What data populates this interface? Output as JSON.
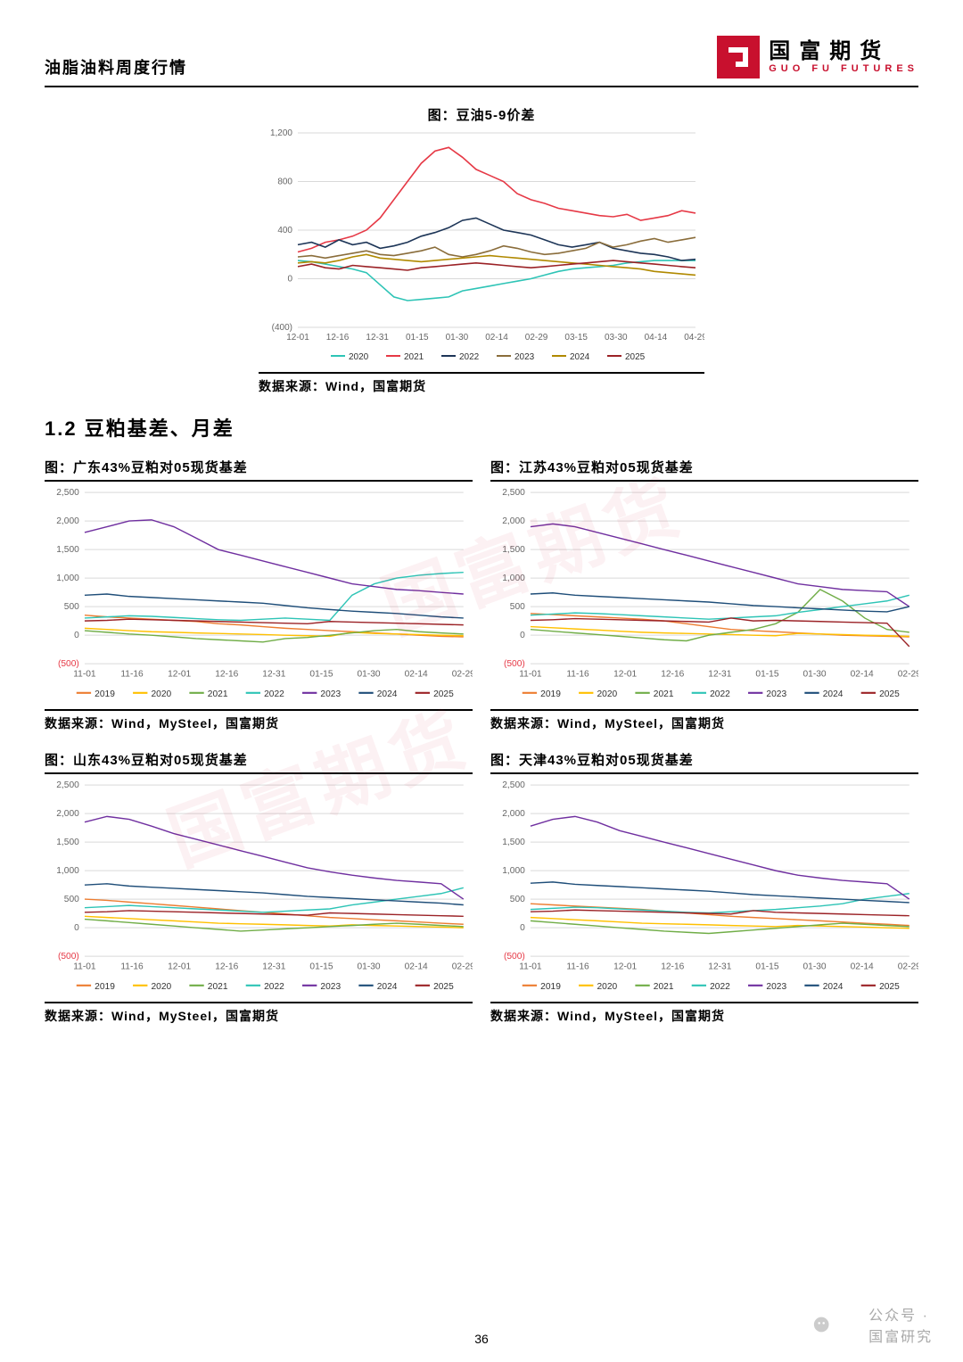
{
  "header": {
    "doc_title": "油脂油料周度行情",
    "logo_cn": "国富期货",
    "logo_en": "GUO FU FUTURES"
  },
  "section_heading": "1.2 豆粕基差、月差",
  "page_number": "36",
  "footer_mark": "公众号 · 国富研究",
  "watermark": "国富期货",
  "top_chart": {
    "type": "line",
    "title": "图：豆油5-9价差",
    "source": "数据来源：Wind，国富期货",
    "ylim": [
      -400,
      1200
    ],
    "ytick_step": 400,
    "x_labels": [
      "12-01",
      "12-16",
      "12-31",
      "01-15",
      "01-30",
      "02-14",
      "02-29",
      "03-15",
      "03-30",
      "04-14",
      "04-29"
    ],
    "background_color": "#ffffff",
    "grid_color": "#d9d9d9",
    "axis_fontsize": 10,
    "title_fontsize": 15,
    "line_width": 1.6,
    "legend": [
      {
        "label": "2020",
        "color": "#2ec4b6"
      },
      {
        "label": "2021",
        "color": "#e63946"
      },
      {
        "label": "2022",
        "color": "#1d3557"
      },
      {
        "label": "2023",
        "color": "#8a6d3b"
      },
      {
        "label": "2024",
        "color": "#b08900"
      },
      {
        "label": "2025",
        "color": "#9b2226"
      }
    ],
    "series": {
      "2020": [
        150,
        140,
        120,
        100,
        80,
        50,
        -50,
        -150,
        -180,
        -170,
        -160,
        -150,
        -100,
        -80,
        -60,
        -40,
        -20,
        0,
        30,
        60,
        80,
        90,
        100,
        110,
        130,
        140,
        150,
        150,
        150,
        150
      ],
      "2021": [
        220,
        250,
        300,
        320,
        350,
        400,
        500,
        650,
        800,
        950,
        1050,
        1080,
        1000,
        900,
        850,
        800,
        700,
        650,
        620,
        580,
        560,
        540,
        520,
        510,
        530,
        480,
        500,
        520,
        560,
        540
      ],
      "2022": [
        280,
        300,
        260,
        320,
        280,
        300,
        250,
        270,
        300,
        350,
        380,
        420,
        480,
        500,
        450,
        400,
        380,
        360,
        320,
        280,
        260,
        280,
        300,
        250,
        230,
        210,
        200,
        180,
        150,
        160
      ],
      "2023": [
        180,
        190,
        170,
        190,
        210,
        230,
        200,
        190,
        210,
        230,
        260,
        200,
        180,
        200,
        230,
        270,
        250,
        220,
        200,
        210,
        230,
        250,
        300,
        260,
        280,
        310,
        330,
        300,
        320,
        340
      ],
      "2024": [
        130,
        140,
        130,
        150,
        180,
        200,
        170,
        160,
        150,
        140,
        150,
        160,
        170,
        180,
        190,
        180,
        170,
        160,
        150,
        140,
        130,
        120,
        110,
        100,
        90,
        80,
        60,
        50,
        40,
        30
      ],
      "2025": [
        100,
        120,
        90,
        80,
        110,
        100,
        90,
        80,
        70,
        90,
        100,
        110,
        120,
        130,
        120,
        110,
        100,
        90,
        100,
        110,
        120,
        130,
        140,
        150,
        140,
        130,
        120,
        110,
        100,
        90
      ]
    }
  },
  "small_charts": {
    "common": {
      "type": "line",
      "ylim": [
        -500,
        2500
      ],
      "ytick_step": 500,
      "x_labels": [
        "11-01",
        "11-16",
        "12-01",
        "12-16",
        "12-31",
        "01-15",
        "01-30",
        "02-14",
        "02-29"
      ],
      "background_color": "#ffffff",
      "grid_color": "#d9d9d9",
      "axis_fontsize": 10,
      "title_fontsize": 14,
      "line_width": 1.4,
      "source": "数据来源：Wind，MySteel，国富期货",
      "neg_label_color": "#e63946",
      "legend": [
        {
          "label": "2019",
          "color": "#ed7d31"
        },
        {
          "label": "2020",
          "color": "#ffc000"
        },
        {
          "label": "2021",
          "color": "#70ad47"
        },
        {
          "label": "2022",
          "color": "#2ec4b6"
        },
        {
          "label": "2023",
          "color": "#7030a0"
        },
        {
          "label": "2024",
          "color": "#1f4e79"
        },
        {
          "label": "2025",
          "color": "#9b2226"
        }
      ]
    },
    "charts": [
      {
        "title": "图：广东43%豆粕对05现货基差",
        "series": {
          "2019": [
            350,
            320,
            300,
            280,
            260,
            240,
            200,
            180,
            150,
            120,
            100,
            80,
            60,
            40,
            20,
            0,
            -20,
            -30
          ],
          "2020": [
            120,
            100,
            80,
            60,
            50,
            40,
            30,
            20,
            10,
            0,
            -10,
            -20,
            50,
            30,
            20,
            10,
            0,
            -10
          ],
          "2021": [
            80,
            50,
            20,
            0,
            -30,
            -60,
            -80,
            -100,
            -120,
            -60,
            -40,
            0,
            40,
            80,
            100,
            60,
            40,
            20
          ],
          "2022": [
            300,
            320,
            340,
            330,
            310,
            290,
            270,
            260,
            280,
            300,
            280,
            260,
            700,
            900,
            1000,
            1050,
            1080,
            1100
          ],
          "2023": [
            1800,
            1900,
            2000,
            2020,
            1900,
            1700,
            1500,
            1400,
            1300,
            1200,
            1100,
            1000,
            900,
            850,
            800,
            780,
            750,
            720
          ],
          "2024": [
            700,
            720,
            680,
            660,
            640,
            620,
            600,
            580,
            560,
            520,
            480,
            450,
            420,
            400,
            380,
            350,
            320,
            300
          ],
          "2025": [
            250,
            260,
            280,
            270,
            260,
            250,
            240,
            230,
            220,
            210,
            200,
            240,
            230,
            220,
            210,
            200,
            190,
            180
          ]
        }
      },
      {
        "title": "图：江苏43%豆粕对05现货基差",
        "series": {
          "2019": [
            380,
            360,
            340,
            320,
            300,
            280,
            250,
            200,
            150,
            100,
            80,
            60,
            40,
            20,
            0,
            -10,
            -20,
            -30
          ],
          "2020": [
            150,
            130,
            110,
            90,
            70,
            50,
            40,
            30,
            20,
            10,
            0,
            -10,
            30,
            20,
            10,
            0,
            -10,
            -20
          ],
          "2021": [
            100,
            70,
            40,
            10,
            -20,
            -50,
            -80,
            -100,
            0,
            50,
            100,
            200,
            400,
            800,
            600,
            300,
            100,
            50
          ],
          "2022": [
            350,
            370,
            390,
            380,
            360,
            340,
            320,
            300,
            280,
            300,
            320,
            340,
            400,
            450,
            500,
            550,
            600,
            700
          ],
          "2023": [
            1900,
            1950,
            1900,
            1800,
            1700,
            1600,
            1500,
            1400,
            1300,
            1200,
            1100,
            1000,
            900,
            850,
            800,
            780,
            760,
            500
          ],
          "2024": [
            720,
            740,
            700,
            680,
            660,
            640,
            620,
            600,
            580,
            550,
            520,
            500,
            480,
            460,
            440,
            420,
            410,
            500
          ],
          "2025": [
            260,
            270,
            290,
            280,
            270,
            260,
            250,
            240,
            230,
            300,
            250,
            260,
            250,
            240,
            230,
            220,
            210,
            -200
          ]
        }
      },
      {
        "title": "图：山东43%豆粕对05现货基差",
        "series": {
          "2019": [
            500,
            480,
            450,
            420,
            390,
            360,
            330,
            300,
            270,
            240,
            210,
            180,
            160,
            140,
            120,
            100,
            80,
            60
          ],
          "2020": [
            200,
            180,
            160,
            140,
            120,
            100,
            80,
            70,
            60,
            50,
            40,
            30,
            50,
            40,
            30,
            20,
            10,
            0
          ],
          "2021": [
            150,
            120,
            90,
            60,
            30,
            0,
            -30,
            -60,
            -40,
            -20,
            0,
            20,
            40,
            60,
            80,
            60,
            40,
            20
          ],
          "2022": [
            350,
            370,
            390,
            370,
            350,
            330,
            310,
            290,
            270,
            290,
            310,
            330,
            400,
            450,
            500,
            550,
            600,
            700
          ],
          "2023": [
            1850,
            1950,
            1900,
            1780,
            1650,
            1550,
            1450,
            1350,
            1250,
            1150,
            1050,
            980,
            920,
            870,
            830,
            800,
            770,
            500
          ],
          "2024": [
            750,
            770,
            730,
            710,
            690,
            670,
            650,
            630,
            610,
            580,
            550,
            530,
            510,
            490,
            470,
            450,
            430,
            400
          ],
          "2025": [
            270,
            280,
            300,
            290,
            280,
            270,
            260,
            250,
            240,
            230,
            220,
            260,
            250,
            240,
            230,
            220,
            210,
            200
          ]
        }
      },
      {
        "title": "图：天津43%豆粕对05现货基差",
        "series": {
          "2019": [
            420,
            400,
            380,
            360,
            340,
            320,
            290,
            260,
            230,
            200,
            180,
            160,
            140,
            120,
            100,
            80,
            60,
            40
          ],
          "2020": [
            180,
            160,
            140,
            120,
            100,
            80,
            70,
            60,
            50,
            40,
            30,
            20,
            40,
            30,
            20,
            10,
            0,
            -10
          ],
          "2021": [
            120,
            90,
            60,
            30,
            0,
            -30,
            -60,
            -80,
            -100,
            -70,
            -40,
            -10,
            20,
            50,
            80,
            60,
            40,
            20
          ],
          "2022": [
            320,
            340,
            360,
            350,
            330,
            310,
            290,
            270,
            260,
            280,
            300,
            320,
            350,
            380,
            420,
            500,
            550,
            600
          ],
          "2023": [
            1780,
            1900,
            1950,
            1850,
            1700,
            1600,
            1500,
            1400,
            1300,
            1200,
            1100,
            1000,
            920,
            870,
            830,
            800,
            770,
            500
          ],
          "2024": [
            780,
            800,
            760,
            740,
            720,
            700,
            680,
            660,
            640,
            610,
            580,
            560,
            540,
            520,
            500,
            480,
            460,
            440
          ],
          "2025": [
            280,
            290,
            310,
            300,
            290,
            280,
            270,
            260,
            250,
            240,
            300,
            270,
            260,
            250,
            240,
            230,
            220,
            210
          ]
        }
      }
    ]
  }
}
